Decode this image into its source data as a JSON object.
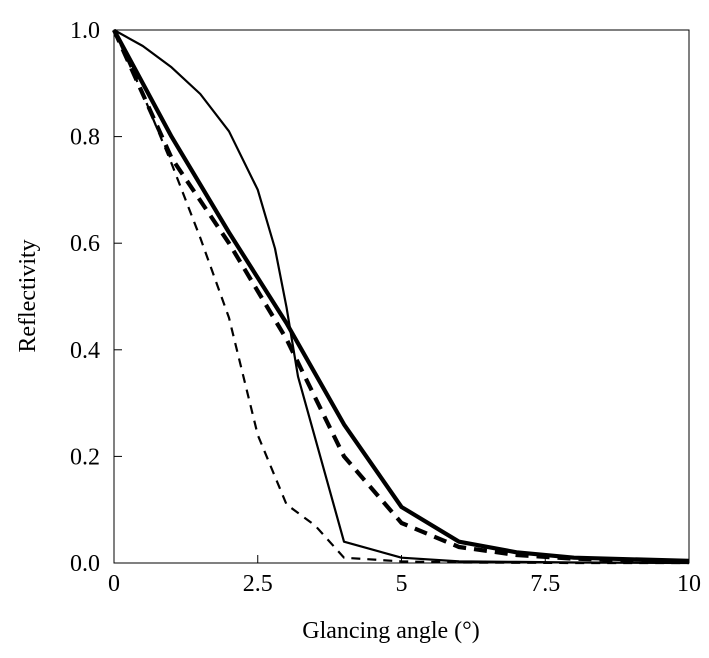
{
  "chart_data": {
    "type": "line",
    "title": "",
    "xlabel": "Glancing angle (°)",
    "ylabel": "Reflectivity",
    "xlim": [
      0,
      10
    ],
    "ylim": [
      0,
      1.0
    ],
    "x_ticks": [
      0,
      2.5,
      5,
      7.5,
      10
    ],
    "x_tick_labels": [
      "0",
      "2.5",
      "5",
      "7.5",
      "10"
    ],
    "y_ticks": [
      0,
      0.2,
      0.4,
      0.6,
      0.8,
      1.0
    ],
    "y_tick_labels": [
      "0.0",
      "0.2",
      "0.4",
      "0.6",
      "0.8",
      "1.0"
    ],
    "grid": false,
    "legend": "none",
    "series": [
      {
        "style": "thin-solid",
        "x": [
          0,
          0.5,
          1.0,
          1.5,
          2.0,
          2.5,
          2.8,
          3.0,
          3.2,
          4.0,
          5.0,
          6.0,
          7.0,
          8.0,
          10.0
        ],
        "y": [
          1.0,
          0.97,
          0.93,
          0.88,
          0.81,
          0.7,
          0.59,
          0.48,
          0.35,
          0.04,
          0.01,
          0.003,
          0.002,
          0.001,
          0.0
        ]
      },
      {
        "style": "thick-solid",
        "x": [
          0,
          1.0,
          2.0,
          3.0,
          4.0,
          5.0,
          6.0,
          7.0,
          8.0,
          10.0
        ],
        "y": [
          1.0,
          0.8,
          0.62,
          0.45,
          0.26,
          0.105,
          0.04,
          0.02,
          0.01,
          0.004
        ]
      },
      {
        "style": "thin-dashed",
        "x": [
          0,
          0.5,
          1.0,
          1.5,
          2.0,
          2.5,
          3.0,
          3.5,
          4.0,
          5.0,
          6.0,
          8.0,
          10.0
        ],
        "y": [
          1.0,
          0.88,
          0.75,
          0.61,
          0.46,
          0.24,
          0.11,
          0.07,
          0.01,
          0.003,
          0.001,
          0.0,
          0.0
        ]
      },
      {
        "style": "thick-dashed",
        "x": [
          0,
          1.0,
          2.0,
          3.0,
          4.0,
          5.0,
          6.0,
          7.0,
          8.0,
          10.0
        ],
        "y": [
          1.0,
          0.76,
          0.6,
          0.42,
          0.2,
          0.075,
          0.03,
          0.015,
          0.008,
          0.003
        ]
      }
    ]
  }
}
